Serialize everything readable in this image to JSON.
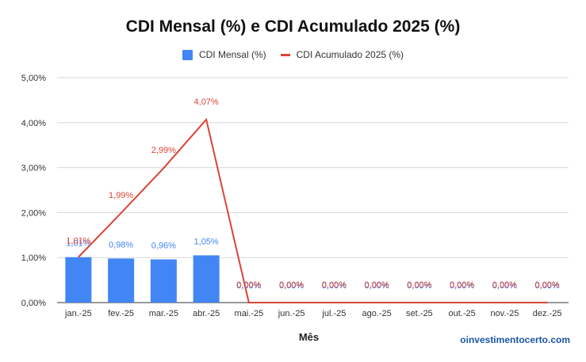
{
  "chart_data": {
    "type": "bar",
    "title": "CDI Mensal (%) e CDI Acumulado 2025 (%)",
    "xlabel": "Mês",
    "ylabel": "",
    "ylim": [
      0,
      5
    ],
    "y_ticks": [
      "0,00%",
      "1,00%",
      "2,00%",
      "3,00%",
      "4,00%",
      "5,00%"
    ],
    "grid": true,
    "legend_position": "top",
    "categories": [
      "jan.-25",
      "fev.-25",
      "mar.-25",
      "abr.-25",
      "mai.-25",
      "jun.-25",
      "jul.-25",
      "ago.-25",
      "set.-25",
      "out.-25",
      "nov.-25",
      "dez.-25"
    ],
    "series": [
      {
        "name": "CDI Mensal (%)",
        "type": "bar",
        "color": "#4285f4",
        "values": [
          1.01,
          0.98,
          0.96,
          1.05,
          0,
          0,
          0,
          0,
          0,
          0,
          0,
          0
        ],
        "labels": [
          "1,01%",
          "0,98%",
          "0,96%",
          "1,05%",
          "0,00%",
          "0,00%",
          "0,00%",
          "0,00%",
          "0,00%",
          "0,00%",
          "0,00%",
          "0,00%"
        ]
      },
      {
        "name": "CDI Acumulado 2025 (%)",
        "type": "line",
        "color": "#db4437",
        "values": [
          1.01,
          1.99,
          2.99,
          4.07,
          0,
          0,
          0,
          0,
          0,
          0,
          0,
          0
        ],
        "labels": [
          "1,01%",
          "1,99%",
          "2,99%",
          "4,07%",
          "0,00%",
          "0,00%",
          "0,00%",
          "0,00%",
          "0,00%",
          "0,00%",
          "0,00%",
          "0,00%"
        ]
      }
    ]
  },
  "watermark": "oinvestimentocerto.com"
}
